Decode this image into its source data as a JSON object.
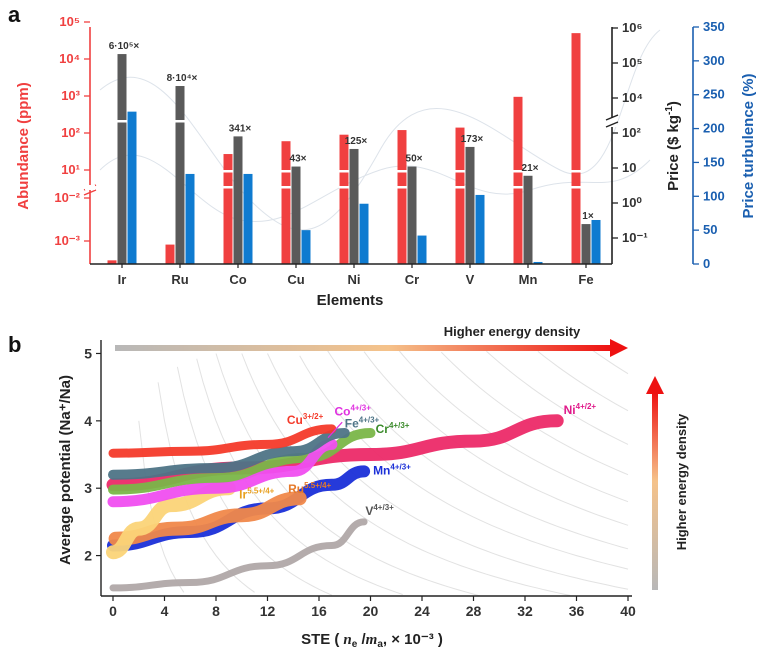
{
  "panel_a": {
    "letter": "a",
    "chart_data": {
      "type": "bar",
      "categories": [
        "Ir",
        "Ru",
        "Co",
        "Cu",
        "Ni",
        "Cr",
        "V",
        "Mn",
        "Fe"
      ],
      "xlabel": "Elements",
      "y_left": {
        "label": "Abundance (ppm)",
        "scale": "log-broken",
        "ticks": [
          "10⁵",
          "10⁴",
          "10³",
          "10²",
          "10¹",
          "10⁻²",
          "10⁻³"
        ],
        "color": "#f04040"
      },
      "y_right_price": {
        "label_main": "Price ($ kg",
        "label_sup": "-1",
        "label_end": ")",
        "scale": "log-broken",
        "ticks": [
          "10⁶",
          "10⁵",
          "10⁴",
          "10²",
          "10",
          "10⁰",
          "10⁻¹"
        ],
        "color": "#222222"
      },
      "y_right_turbulence": {
        "label": "Price turbulence (%)",
        "range": [
          0,
          350
        ],
        "ticks": [
          "0",
          "50",
          "100",
          "150",
          "200",
          "250",
          "300",
          "350"
        ],
        "color": "#1a5fb0"
      },
      "series": [
        {
          "name": "Abundance",
          "color": "#f04040",
          "values": [
            0.0003,
            0.0008,
            27,
            60,
            90,
            120,
            140,
            950,
            50000
          ]
        },
        {
          "name": "Price",
          "color": "#5a5a5a",
          "values": [
            180000,
            22000,
            80,
            11,
            35,
            11,
            40,
            6,
            0.25
          ]
        },
        {
          "name": "Price turbulence",
          "color": "#0f7bd0",
          "values": [
            225,
            133,
            133,
            50,
            89,
            42,
            102,
            3,
            65
          ]
        }
      ],
      "annotations": [
        "6·10⁵×",
        "8·10⁴×",
        "341×",
        "43×",
        "125×",
        "50×",
        "173×",
        "21×",
        "1×"
      ]
    }
  },
  "panel_b": {
    "letter": "b",
    "chart_data": {
      "type": "line",
      "xlabel_main": "STE (",
      "xlabel_ne": "n",
      "xlabel_ne_sub": "e",
      "xlabel_sep": " /",
      "xlabel_ma": "m",
      "xlabel_ma_sub": "a",
      "xlabel_end": ", × 10⁻³ )",
      "ylabel": "Average potential (Na⁺/Na)",
      "xlim": [
        0,
        40
      ],
      "ylim": [
        1.4,
        5.2
      ],
      "x_ticks": [
        "0",
        "4",
        "8",
        "12",
        "16",
        "20",
        "24",
        "28",
        "32",
        "36",
        "40"
      ],
      "y_ticks": [
        "2",
        "3",
        "4",
        "5"
      ],
      "arrow_horizontal": "Higher energy density",
      "arrow_vertical": "Higher energy density",
      "series": [
        {
          "name": "V",
          "sup": "4+/3+",
          "color": "#b0a8a8",
          "label_color": "#555555",
          "points": [
            [
              0,
              1.52
            ],
            [
              6,
              1.6
            ],
            [
              12,
              1.85
            ],
            [
              17,
              2.15
            ],
            [
              19.5,
              2.5
            ]
          ]
        },
        {
          "name": "Mn",
          "sup": "4+/3+",
          "color": "#1a2fd8",
          "label_color": "#1a2fd8",
          "points": [
            [
              0,
              2.15
            ],
            [
              6,
              2.35
            ],
            [
              12,
              2.7
            ],
            [
              17,
              3.05
            ],
            [
              19.5,
              3.25
            ]
          ]
        },
        {
          "name": "Ru",
          "sup": "5.5+/4+",
          "color": "#f0884a",
          "label_color": "#e67a2a",
          "points": [
            [
              0.2,
              2.25
            ],
            [
              5,
              2.4
            ],
            [
              10,
              2.6
            ],
            [
              14.5,
              2.85
            ]
          ]
        },
        {
          "name": "Ir",
          "sup": "5.5+/4+",
          "color": "#fbd478",
          "label_color": "#e8a020",
          "points": [
            [
              0,
              2.05
            ],
            [
              2,
              2.4
            ],
            [
              4.5,
              2.75
            ],
            [
              9,
              3.0
            ]
          ]
        },
        {
          "name": "Ni",
          "sup": "4+/2+",
          "color": "#ec2a68",
          "label_color": "#e01a8a",
          "points": [
            [
              0,
              3.05
            ],
            [
              10,
              3.3
            ],
            [
              20,
              3.5
            ],
            [
              28,
              3.7
            ],
            [
              34.5,
              4.0
            ]
          ]
        },
        {
          "name": "Cr",
          "sup": "4+/3+",
          "color": "#7ab648",
          "label_color": "#3a8a2a",
          "points": [
            [
              0,
              2.98
            ],
            [
              8,
              3.15
            ],
            [
              15,
              3.45
            ],
            [
              20,
              3.82
            ]
          ]
        },
        {
          "name": "Co",
          "sup": "4+/3+",
          "color": "#f04ef0",
          "label_color": "#e030e0",
          "points": [
            [
              0,
              2.8
            ],
            [
              8,
              3.0
            ],
            [
              14,
              3.25
            ],
            [
              17,
              3.65
            ]
          ]
        },
        {
          "name": "Fe",
          "sup": "4+/3+",
          "color": "#4e7486",
          "label_color": "#4e7486",
          "points": [
            [
              0,
              3.2
            ],
            [
              8,
              3.3
            ],
            [
              14,
              3.55
            ],
            [
              18,
              3.82
            ]
          ]
        },
        {
          "name": "Cu",
          "sup": "3+/2+",
          "color": "#f43a2a",
          "label_color": "#f43a2a",
          "points": [
            [
              0,
              3.52
            ],
            [
              6,
              3.55
            ],
            [
              12,
              3.65
            ],
            [
              17,
              3.88
            ]
          ]
        }
      ]
    }
  }
}
